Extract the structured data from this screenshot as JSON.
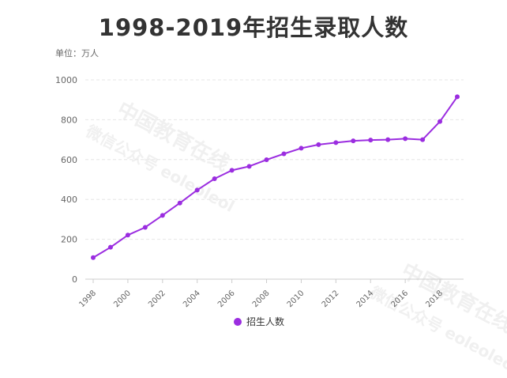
{
  "title": "1998-2019年招生录取人数",
  "unit_label": "单位：万人",
  "watermark": {
    "line1": "中国教育在线",
    "line2": "微信公众号 eoleoleol"
  },
  "colors": {
    "series": "#9b2de0",
    "axis": "#cccccc",
    "grid": "#e6e6e6",
    "tick_text": "#666666"
  },
  "chart_data": {
    "type": "line",
    "x": [
      1998,
      1999,
      2000,
      2001,
      2002,
      2003,
      2004,
      2005,
      2006,
      2007,
      2008,
      2009,
      2010,
      2011,
      2012,
      2013,
      2014,
      2015,
      2016,
      2017,
      2018,
      2019
    ],
    "series": [
      {
        "name": "招生人数",
        "values": [
          108,
          160,
          221,
          260,
          320,
          382,
          447,
          504,
          546,
          566,
          599,
          629,
          657,
          675,
          685,
          694,
          698,
          700,
          705,
          700,
          791,
          915
        ]
      }
    ],
    "xticks": [
      "1998",
      "2000",
      "2002",
      "2004",
      "2006",
      "2008",
      "2010",
      "2012",
      "2014",
      "2016",
      "2018"
    ],
    "yticks": [
      "0",
      "200",
      "400",
      "600",
      "800",
      "1000"
    ],
    "ylim": [
      0,
      1000
    ],
    "grid": true,
    "legend_position": "bottom-center"
  }
}
